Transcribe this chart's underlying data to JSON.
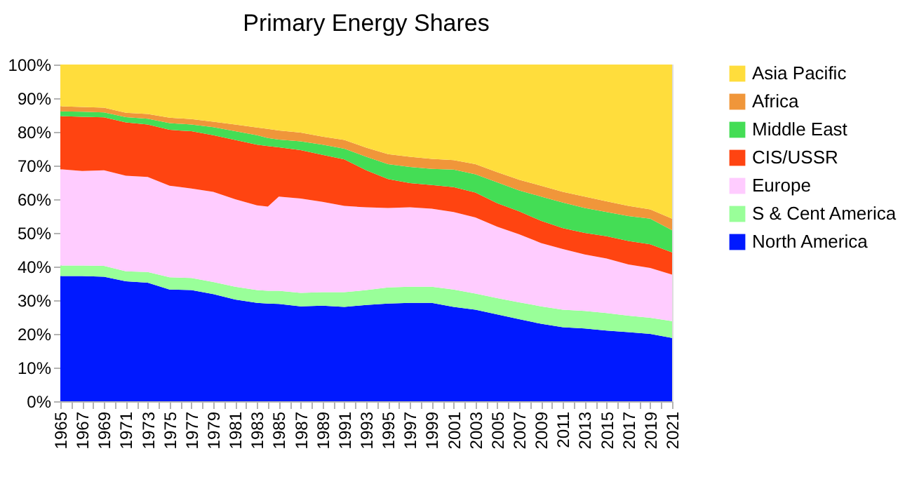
{
  "chart_data": {
    "type": "area",
    "stacked": true,
    "title": "Primary Energy Shares",
    "x": [
      1965,
      1967,
      1969,
      1971,
      1973,
      1975,
      1977,
      1979,
      1981,
      1983,
      1984,
      1985,
      1987,
      1989,
      1991,
      1993,
      1995,
      1997,
      1999,
      2001,
      2003,
      2005,
      2007,
      2009,
      2011,
      2013,
      2015,
      2017,
      2019,
      2021
    ],
    "series": [
      {
        "name": "North America",
        "color": "#0019ff",
        "values": [
          37.2,
          37.2,
          37.0,
          35.6,
          35.2,
          33.2,
          33.0,
          31.8,
          30.2,
          29.2,
          29.0,
          28.9,
          28.2,
          28.4,
          28.0,
          28.6,
          29.0,
          29.2,
          29.2,
          28.0,
          27.2,
          25.8,
          24.4,
          23.0,
          22.0,
          21.6,
          21.0,
          20.5,
          20.0,
          18.8
        ]
      },
      {
        "name": "S & Cent America",
        "color": "#99ff99",
        "values": [
          3.1,
          3.1,
          3.2,
          3.0,
          3.2,
          3.6,
          3.6,
          3.6,
          3.8,
          3.8,
          3.8,
          3.9,
          4.0,
          4.0,
          4.4,
          4.4,
          4.8,
          4.8,
          4.8,
          5.2,
          4.8,
          4.8,
          5.0,
          5.2,
          5.2,
          5.2,
          5.2,
          4.9,
          4.8,
          5.0
        ]
      },
      {
        "name": "Europe",
        "color": "#ffccff",
        "values": [
          28.6,
          28.1,
          28.4,
          28.4,
          28.2,
          27.2,
          26.6,
          26.8,
          26.0,
          25.2,
          25.0,
          28.0,
          28.0,
          26.8,
          25.6,
          24.6,
          23.6,
          23.6,
          23.2,
          23.0,
          22.6,
          21.2,
          20.2,
          18.8,
          18.0,
          16.8,
          16.2,
          15.2,
          14.8,
          13.8
        ]
      },
      {
        "name": "CIS/USSR",
        "color": "#ff4411",
        "values": [
          15.8,
          16.1,
          15.7,
          15.8,
          15.6,
          16.6,
          17.0,
          16.8,
          17.6,
          18.0,
          18.0,
          14.6,
          14.4,
          14.0,
          13.8,
          11.0,
          8.6,
          7.2,
          7.0,
          7.4,
          7.4,
          7.0,
          6.8,
          6.6,
          6.2,
          6.4,
          6.6,
          7.0,
          7.0,
          6.6
        ]
      },
      {
        "name": "Middle East",
        "color": "#44dd55",
        "values": [
          1.4,
          1.5,
          1.5,
          1.6,
          1.7,
          2.0,
          2.0,
          2.4,
          2.6,
          2.8,
          2.4,
          2.3,
          2.6,
          3.0,
          3.2,
          4.0,
          4.4,
          4.8,
          4.8,
          5.2,
          5.4,
          6.2,
          6.2,
          7.2,
          7.6,
          7.4,
          7.2,
          7.4,
          7.6,
          6.6
        ]
      },
      {
        "name": "Africa",
        "color": "#f0963a",
        "values": [
          1.5,
          1.4,
          1.4,
          1.3,
          1.4,
          1.6,
          1.6,
          1.6,
          2.0,
          2.3,
          2.7,
          2.7,
          2.6,
          2.4,
          2.6,
          2.7,
          3.0,
          3.0,
          3.0,
          2.8,
          3.0,
          3.0,
          3.2,
          3.2,
          3.2,
          3.4,
          3.2,
          3.0,
          2.8,
          3.4
        ]
      },
      {
        "name": "Asia Pacific",
        "color": "#ffdd3c",
        "values": [
          12.4,
          12.6,
          12.8,
          14.3,
          14.7,
          15.8,
          16.2,
          17.0,
          17.8,
          18.7,
          19.1,
          19.6,
          20.2,
          21.4,
          22.4,
          24.7,
          26.6,
          27.4,
          28.0,
          28.4,
          29.6,
          32.0,
          34.2,
          36.0,
          37.8,
          39.2,
          40.6,
          42.0,
          43.0,
          45.8
        ]
      }
    ],
    "xlim": [
      1965,
      2021
    ],
    "xticks": [
      1965,
      {
        "value": 1966,
        "label": null
      },
      1967,
      {
        "value": 1968,
        "label": null
      },
      1969,
      {
        "value": 1970,
        "label": null
      },
      1971,
      {
        "value": 1972,
        "label": null
      },
      1973,
      {
        "value": 1974,
        "label": null
      },
      1975,
      {
        "value": 1976,
        "label": null
      },
      1977,
      {
        "value": 1978,
        "label": null
      },
      1979,
      {
        "value": 1980,
        "label": null
      },
      1981,
      {
        "value": 1982,
        "label": null
      },
      1983,
      {
        "value": 1984,
        "label": null
      },
      1985,
      {
        "value": 1986,
        "label": null
      },
      1987,
      {
        "value": 1988,
        "label": null
      },
      1989,
      {
        "value": 1990,
        "label": null
      },
      1991,
      {
        "value": 1992,
        "label": null
      },
      1993,
      {
        "value": 1994,
        "label": null
      },
      1995,
      {
        "value": 1996,
        "label": null
      },
      1997,
      {
        "value": 1998,
        "label": null
      },
      1999,
      {
        "value": 2000,
        "label": null
      },
      2001,
      {
        "value": 2002,
        "label": null
      },
      2003,
      {
        "value": 2004,
        "label": null
      },
      2005,
      {
        "value": 2006,
        "label": null
      },
      2007,
      {
        "value": 2008,
        "label": null
      },
      2009,
      {
        "value": 2010,
        "label": null
      },
      2011,
      {
        "value": 2012,
        "label": null
      },
      2013,
      {
        "value": 2014,
        "label": null
      },
      2015,
      {
        "value": 2016,
        "label": null
      },
      2017,
      {
        "value": 2018,
        "label": null
      },
      2019,
      {
        "value": 2020,
        "label": null
      },
      2021
    ],
    "ylim": [
      0,
      100
    ],
    "yticks": [
      {
        "value": 0,
        "label": "0%"
      },
      {
        "value": 10,
        "label": "10%"
      },
      {
        "value": 20,
        "label": "20%"
      },
      {
        "value": 30,
        "label": "30%"
      },
      {
        "value": 40,
        "label": "40%"
      },
      {
        "value": 50,
        "label": "50%"
      },
      {
        "value": 60,
        "label": "60%"
      },
      {
        "value": 70,
        "label": "70%"
      },
      {
        "value": 80,
        "label": "80%"
      },
      {
        "value": 90,
        "label": "90%"
      },
      {
        "value": 100,
        "label": "100%"
      }
    ],
    "grid": false,
    "legend": "right"
  }
}
